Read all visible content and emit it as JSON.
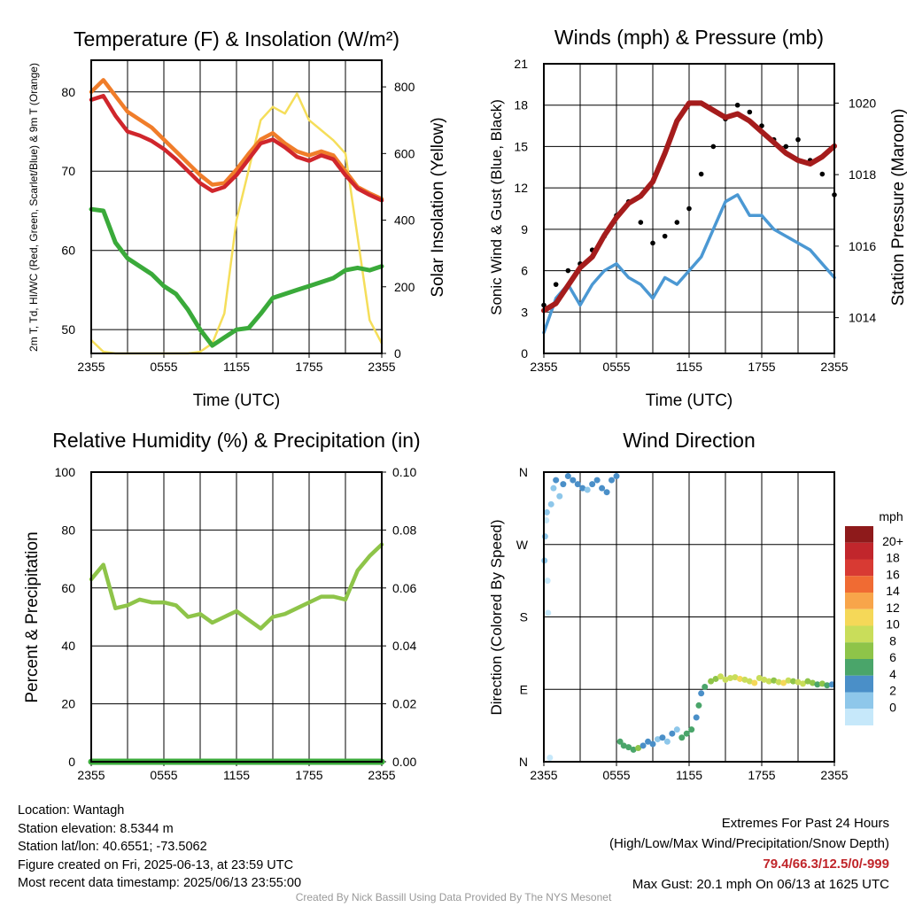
{
  "chart_data": [
    {
      "type": "line",
      "title": "Temperature (F) & Insolation (W/m²)",
      "xlabel": "Time (UTC)",
      "ylabel_left": "2m T, Td, HI/WC (Red, Green, Scarlet/Blue) & 9m T (Orange)",
      "ylabel_right": "Solar Insolation (Yellow)",
      "x_ticks": [
        "2355",
        "0555",
        "1155",
        "1755",
        "2355"
      ],
      "ylim_left": [
        47,
        84
      ],
      "ylim_right": [
        0,
        880
      ],
      "yticks_left": [
        50,
        60,
        70,
        80
      ],
      "yticks_right": [
        0,
        200,
        400,
        600,
        800
      ],
      "x_hours": [
        0,
        1,
        2,
        3,
        4,
        5,
        6,
        7,
        8,
        9,
        10,
        11,
        12,
        13,
        14,
        15,
        16,
        17,
        18,
        19,
        20,
        21,
        22,
        23,
        24
      ],
      "series": [
        {
          "name": "2m T",
          "axis": "left",
          "color": "#d0262c",
          "values": [
            79,
            79.5,
            77,
            75,
            74.5,
            73.8,
            72.8,
            71.5,
            70,
            68.5,
            67.5,
            68,
            69.5,
            71.5,
            73.5,
            74,
            73,
            71.8,
            71.3,
            72,
            71.5,
            69.5,
            67.8,
            67,
            66.3
          ]
        },
        {
          "name": "9m T",
          "axis": "left",
          "color": "#f07d2a",
          "values": [
            80,
            81.5,
            79.5,
            77.5,
            76.5,
            75.5,
            74,
            72.5,
            71,
            69.5,
            68.3,
            68.5,
            70.2,
            72.2,
            74,
            74.8,
            73.5,
            72.5,
            72,
            72.5,
            72,
            70,
            68,
            67.2,
            66.5
          ]
        },
        {
          "name": "Td",
          "axis": "left",
          "color": "#3aaa3a",
          "values": [
            65.2,
            65,
            61,
            59,
            58,
            57,
            55.5,
            54.5,
            52.5,
            50,
            48,
            49,
            50,
            50.2,
            52,
            54,
            54.5,
            55,
            55.5,
            56,
            56.5,
            57.5,
            57.8,
            57.5,
            58
          ]
        },
        {
          "name": "Solar Insolation",
          "axis": "right",
          "color": "#f5de5a",
          "values": [
            40,
            5,
            0,
            0,
            0,
            0,
            0,
            0,
            0,
            5,
            30,
            120,
            400,
            550,
            700,
            740,
            720,
            780,
            700,
            670,
            640,
            600,
            350,
            100,
            30
          ]
        }
      ]
    },
    {
      "type": "line",
      "title": "Winds (mph) & Pressure (mb)",
      "xlabel": "Time (UTC)",
      "ylabel_left": "Sonic Wind & Gust (Blue, Black)",
      "ylabel_right": "Station Pressure (Maroon)",
      "x_ticks": [
        "2355",
        "0555",
        "1155",
        "1755",
        "2355"
      ],
      "ylim_left": [
        0,
        21
      ],
      "ylim_right": [
        1013.0,
        1021.1
      ],
      "yticks_left": [
        0,
        3,
        6,
        9,
        12,
        15,
        18,
        21
      ],
      "yticks_right": [
        1014,
        1016,
        1018,
        1020
      ],
      "x_hours": [
        0,
        1,
        2,
        3,
        4,
        5,
        6,
        7,
        8,
        9,
        10,
        11,
        12,
        13,
        14,
        15,
        16,
        17,
        18,
        19,
        20,
        21,
        22,
        23,
        24
      ],
      "series": [
        {
          "name": "Sonic Wind",
          "axis": "left",
          "color": "#4b98d3",
          "values": [
            1.5,
            4,
            5,
            3.5,
            5,
            6,
            6.5,
            5.5,
            5,
            4,
            5.5,
            5,
            6,
            7,
            9,
            11,
            11.5,
            10,
            10,
            9,
            8.5,
            8,
            7.5,
            6.5,
            5.5
          ]
        },
        {
          "name": "Gust",
          "axis": "left",
          "color": "#000000",
          "values": [
            3.5,
            5,
            6,
            6.5,
            7.5,
            8.5,
            10,
            11,
            9.5,
            8,
            8.5,
            9.5,
            10.5,
            13,
            15,
            17,
            18,
            17.5,
            16.5,
            15.5,
            15,
            15.5,
            14,
            13,
            11.5
          ]
        },
        {
          "name": "Station Pressure",
          "axis": "right",
          "color": "#a51c1c",
          "values": [
            1014.2,
            1014.4,
            1014.9,
            1015.4,
            1015.7,
            1016.3,
            1016.8,
            1017.2,
            1017.4,
            1017.8,
            1018.6,
            1019.5,
            1020.0,
            1020.0,
            1019.8,
            1019.6,
            1019.7,
            1019.5,
            1019.2,
            1018.9,
            1018.6,
            1018.4,
            1018.3,
            1018.5,
            1018.8
          ]
        }
      ]
    },
    {
      "type": "line",
      "title": "Relative Humidity (%) & Precipitation (in)",
      "ylabel_left": "Percent & Precipitation",
      "x_ticks": [
        "2355",
        "0555",
        "1155",
        "1755",
        "2355"
      ],
      "ylim_left": [
        0,
        100
      ],
      "ylim_right": [
        0,
        0.1
      ],
      "yticks_left": [
        0,
        20,
        40,
        60,
        80,
        100
      ],
      "yticks_right": [
        "0.00",
        "0.02",
        "0.04",
        "0.06",
        "0.08",
        "0.10"
      ],
      "x_hours": [
        0,
        1,
        2,
        3,
        4,
        5,
        6,
        7,
        8,
        9,
        10,
        11,
        12,
        13,
        14,
        15,
        16,
        17,
        18,
        19,
        20,
        21,
        22,
        23,
        24
      ],
      "series": [
        {
          "name": "Relative Humidity",
          "axis": "left",
          "color": "#8ec449",
          "values": [
            63,
            68,
            53,
            54,
            56,
            55,
            55,
            54,
            50,
            51,
            48,
            50,
            52,
            49,
            46,
            50,
            51,
            53,
            55,
            57,
            57,
            56,
            66,
            71,
            75
          ]
        },
        {
          "name": "Precipitation",
          "axis": "right",
          "color": "#3aaa3a",
          "values": [
            0,
            0,
            0,
            0,
            0,
            0,
            0,
            0,
            0,
            0,
            0,
            0,
            0,
            0,
            0,
            0,
            0,
            0,
            0,
            0,
            0,
            0,
            0,
            0,
            0
          ]
        }
      ]
    },
    {
      "type": "scatter",
      "title": "Wind Direction",
      "ylabel_left": "Direction (Colored By Speed)",
      "x_ticks": [
        "2355",
        "0555",
        "1155",
        "1755",
        "2355"
      ],
      "ylim": [
        0,
        360
      ],
      "yticks": [
        "N",
        "E",
        "S",
        "W",
        "N"
      ],
      "ytick_values": [
        0,
        90,
        180,
        270,
        360
      ],
      "colorbar": {
        "unit": "mph",
        "labels": [
          "20+",
          "18",
          "16",
          "14",
          "12",
          "10",
          "8",
          "6",
          "4",
          "2",
          "0"
        ],
        "colors": [
          "#8e1a1b",
          "#c1262c",
          "#d83a33",
          "#f06b33",
          "#f8a54a",
          "#f5d858",
          "#c9dd5a",
          "#8ec449",
          "#4aa56a",
          "#4a8fc8",
          "#8ec7ea",
          "#c6e8fa"
        ]
      },
      "points": [
        {
          "h": 0.05,
          "dir": 250,
          "spd": 3
        },
        {
          "h": 0.1,
          "dir": 280,
          "spd": 2
        },
        {
          "h": 0.2,
          "dir": 300,
          "spd": 1.5
        },
        {
          "h": 0.3,
          "dir": 225,
          "spd": 1
        },
        {
          "h": 0.35,
          "dir": 185,
          "spd": 1
        },
        {
          "h": 0.5,
          "dir": 5,
          "spd": 1
        },
        {
          "h": 0.25,
          "dir": 310,
          "spd": 2
        },
        {
          "h": 0.6,
          "dir": 320,
          "spd": 2
        },
        {
          "h": 0.8,
          "dir": 340,
          "spd": 3
        },
        {
          "h": 1.0,
          "dir": 350,
          "spd": 4
        },
        {
          "h": 1.3,
          "dir": 330,
          "spd": 3
        },
        {
          "h": 1.6,
          "dir": 345,
          "spd": 4
        },
        {
          "h": 2.0,
          "dir": 355,
          "spd": 4
        },
        {
          "h": 2.4,
          "dir": 350,
          "spd": 5
        },
        {
          "h": 2.8,
          "dir": 345,
          "spd": 4
        },
        {
          "h": 3.2,
          "dir": 340,
          "spd": 4
        },
        {
          "h": 3.6,
          "dir": 338,
          "spd": 3
        },
        {
          "h": 4.0,
          "dir": 345,
          "spd": 4
        },
        {
          "h": 4.4,
          "dir": 350,
          "spd": 4
        },
        {
          "h": 4.8,
          "dir": 340,
          "spd": 4
        },
        {
          "h": 5.2,
          "dir": 335,
          "spd": 5
        },
        {
          "h": 5.6,
          "dir": 350,
          "spd": 4
        },
        {
          "h": 6.0,
          "dir": 355,
          "spd": 5
        },
        {
          "h": 6.3,
          "dir": 25,
          "spd": 6
        },
        {
          "h": 6.6,
          "dir": 20,
          "spd": 7
        },
        {
          "h": 7.0,
          "dir": 18,
          "spd": 7
        },
        {
          "h": 7.4,
          "dir": 15,
          "spd": 6
        },
        {
          "h": 7.8,
          "dir": 17,
          "spd": 8
        },
        {
          "h": 8.2,
          "dir": 20,
          "spd": 5
        },
        {
          "h": 8.6,
          "dir": 25,
          "spd": 4
        },
        {
          "h": 9.0,
          "dir": 22,
          "spd": 5
        },
        {
          "h": 9.4,
          "dir": 28,
          "spd": 3
        },
        {
          "h": 9.8,
          "dir": 30,
          "spd": 4
        },
        {
          "h": 10.2,
          "dir": 25,
          "spd": 3
        },
        {
          "h": 10.6,
          "dir": 35,
          "spd": 4
        },
        {
          "h": 11.0,
          "dir": 40,
          "spd": 3
        },
        {
          "h": 11.4,
          "dir": 30,
          "spd": 6
        },
        {
          "h": 11.8,
          "dir": 35,
          "spd": 6
        },
        {
          "h": 12.2,
          "dir": 40,
          "spd": 6
        },
        {
          "h": 12.6,
          "dir": 55,
          "spd": 5
        },
        {
          "h": 12.8,
          "dir": 70,
          "spd": 6
        },
        {
          "h": 13.0,
          "dir": 85,
          "spd": 5
        },
        {
          "h": 13.3,
          "dir": 93,
          "spd": 7
        },
        {
          "h": 13.8,
          "dir": 100,
          "spd": 8
        },
        {
          "h": 14.2,
          "dir": 103,
          "spd": 9
        },
        {
          "h": 14.6,
          "dir": 106,
          "spd": 10
        },
        {
          "h": 15.0,
          "dir": 102,
          "spd": 11
        },
        {
          "h": 15.4,
          "dir": 104,
          "spd": 10
        },
        {
          "h": 15.8,
          "dir": 105,
          "spd": 11
        },
        {
          "h": 16.2,
          "dir": 103,
          "spd": 12
        },
        {
          "h": 16.6,
          "dir": 102,
          "spd": 10
        },
        {
          "h": 17.0,
          "dir": 100,
          "spd": 11
        },
        {
          "h": 17.4,
          "dir": 98,
          "spd": 13
        },
        {
          "h": 17.8,
          "dir": 104,
          "spd": 11
        },
        {
          "h": 18.2,
          "dir": 102,
          "spd": 10
        },
        {
          "h": 18.6,
          "dir": 100,
          "spd": 10
        },
        {
          "h": 19.0,
          "dir": 101,
          "spd": 9
        },
        {
          "h": 19.4,
          "dir": 99,
          "spd": 11
        },
        {
          "h": 19.8,
          "dir": 98,
          "spd": 12
        },
        {
          "h": 20.2,
          "dir": 101,
          "spd": 10
        },
        {
          "h": 20.6,
          "dir": 100,
          "spd": 9
        },
        {
          "h": 21.0,
          "dir": 99,
          "spd": 10
        },
        {
          "h": 21.4,
          "dir": 97,
          "spd": 11
        },
        {
          "h": 21.8,
          "dir": 100,
          "spd": 9
        },
        {
          "h": 22.2,
          "dir": 98,
          "spd": 8
        },
        {
          "h": 22.6,
          "dir": 96,
          "spd": 7
        },
        {
          "h": 23.0,
          "dir": 97,
          "spd": 8
        },
        {
          "h": 23.4,
          "dir": 95,
          "spd": 6
        },
        {
          "h": 23.8,
          "dir": 96,
          "spd": 5
        }
      ]
    }
  ],
  "info": {
    "location": "Location: Wantagh",
    "elevation": "Station elevation: 8.5344 m",
    "latlon": "Station lat/lon: 40.6551; -73.5062",
    "created": "Figure created on Fri, 2025-06-13, at 23:59 UTC",
    "recent": "Most recent data timestamp: 2025/06/13 23:55:00"
  },
  "extremes": {
    "title": "Extremes For Past 24 Hours",
    "subtitle": "(High/Low/Max Wind/Precipitation/Snow Depth)",
    "values": "79.4/66.3/12.5/0/-999",
    "gust": "Max Gust: 20.1 mph On 06/13 at 1625 UTC"
  },
  "credit": "Created By Nick Bassill Using Data Provided By The NYS Mesonet"
}
